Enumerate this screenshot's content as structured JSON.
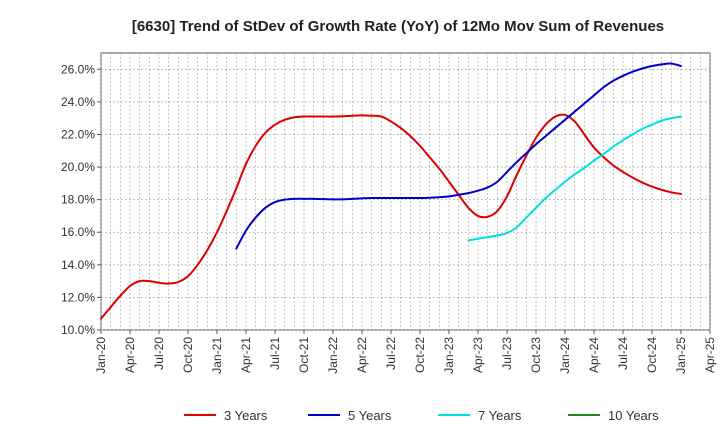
{
  "chart_data": {
    "type": "line",
    "title": "[6630]  Trend of StDev of Growth Rate (YoY) of 12Mo Mov Sum of Revenues",
    "xlabel": "",
    "ylabel": "",
    "x_ticks": [
      "Jan-20",
      "Apr-20",
      "Jul-20",
      "Oct-20",
      "Jan-21",
      "Apr-21",
      "Jul-21",
      "Oct-21",
      "Jan-22",
      "Apr-22",
      "Jul-22",
      "Oct-22",
      "Jan-23",
      "Apr-23",
      "Jul-23",
      "Oct-23",
      "Jan-24",
      "Apr-24",
      "Jul-24",
      "Oct-24",
      "Jan-25",
      "Apr-25"
    ],
    "y_ticks": [
      "10.0%",
      "12.0%",
      "14.0%",
      "16.0%",
      "18.0%",
      "20.0%",
      "22.0%",
      "24.0%",
      "26.0%"
    ],
    "ylim": [
      10,
      27
    ],
    "xlim": [
      0,
      63
    ],
    "grid": true,
    "legend_position": "bottom",
    "series": [
      {
        "name": "3 Years",
        "color": "#dd0000",
        "x": [
          0,
          1,
          2,
          3,
          4,
          5,
          6,
          7,
          8,
          9,
          10,
          11,
          12,
          13,
          14,
          15,
          16,
          17,
          18,
          19,
          20,
          21,
          22,
          23,
          24,
          25,
          26,
          27,
          28,
          29,
          30,
          31,
          32,
          33,
          34,
          35,
          36,
          37,
          38,
          39,
          40,
          41,
          42,
          43,
          44,
          45,
          46,
          47,
          48,
          49,
          50,
          51,
          52,
          53,
          54,
          55,
          56,
          57,
          58,
          59,
          60
        ],
        "values": [
          10.7,
          11.4,
          12.1,
          12.7,
          13.0,
          13.0,
          12.9,
          12.85,
          12.95,
          13.3,
          14.0,
          14.9,
          16.0,
          17.3,
          18.7,
          20.2,
          21.3,
          22.1,
          22.6,
          22.9,
          23.05,
          23.1,
          23.1,
          23.1,
          23.1,
          23.12,
          23.15,
          23.17,
          23.15,
          23.1,
          22.8,
          22.4,
          21.9,
          21.3,
          20.6,
          19.9,
          19.1,
          18.3,
          17.5,
          17.0,
          16.95,
          17.3,
          18.2,
          19.5,
          20.7,
          21.8,
          22.6,
          23.1,
          23.2,
          22.8,
          22.0,
          21.2,
          20.6,
          20.1,
          19.7,
          19.35,
          19.05,
          18.8,
          18.6,
          18.45,
          18.35
        ]
      },
      {
        "name": "5 Years",
        "color": "#0000cc",
        "x": [
          14,
          15,
          16,
          17,
          18,
          19,
          20,
          21,
          22,
          23,
          24,
          25,
          26,
          27,
          28,
          29,
          30,
          31,
          32,
          33,
          34,
          35,
          36,
          37,
          38,
          39,
          40,
          41,
          42,
          43,
          44,
          45,
          46,
          47,
          48,
          49,
          50,
          51,
          52,
          53,
          54,
          55,
          56,
          57,
          58,
          59,
          60
        ],
        "values": [
          15.0,
          16.1,
          16.9,
          17.5,
          17.85,
          18.0,
          18.05,
          18.05,
          18.05,
          18.03,
          18.02,
          18.02,
          18.05,
          18.08,
          18.1,
          18.1,
          18.1,
          18.1,
          18.1,
          18.1,
          18.12,
          18.15,
          18.2,
          18.3,
          18.4,
          18.55,
          18.75,
          19.1,
          19.7,
          20.3,
          20.85,
          21.4,
          21.9,
          22.4,
          22.9,
          23.4,
          23.9,
          24.4,
          24.9,
          25.3,
          25.6,
          25.85,
          26.05,
          26.2,
          26.3,
          26.35,
          26.2
        ]
      },
      {
        "name": "7 Years",
        "color": "#00e0e0",
        "x": [
          38,
          39,
          40,
          41,
          42,
          43,
          44,
          45,
          46,
          47,
          48,
          49,
          50,
          51,
          52,
          53,
          54,
          55,
          56,
          57,
          58,
          59,
          60
        ],
        "values": [
          15.5,
          15.6,
          15.7,
          15.8,
          15.95,
          16.3,
          16.9,
          17.5,
          18.1,
          18.6,
          19.1,
          19.55,
          19.95,
          20.4,
          20.8,
          21.25,
          21.65,
          22.0,
          22.35,
          22.6,
          22.85,
          23.0,
          23.1
        ]
      },
      {
        "name": "10 Years",
        "color": "#1a8a1a",
        "x": [],
        "values": []
      }
    ]
  }
}
